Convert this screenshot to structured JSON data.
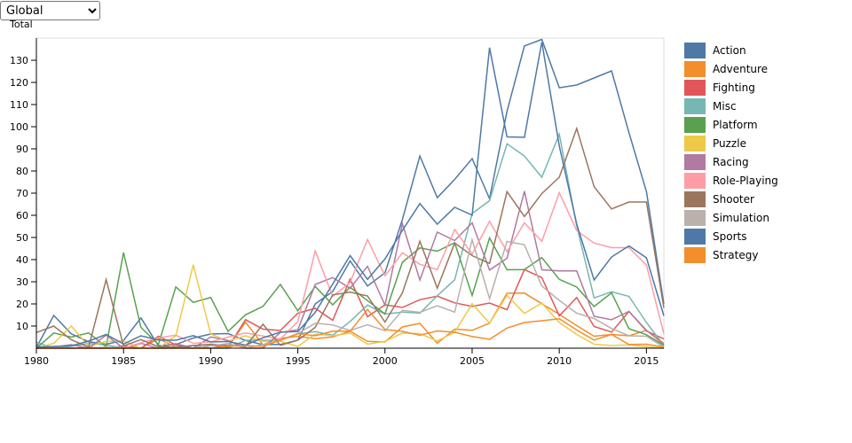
{
  "region_select": {
    "value": "Global",
    "options": [
      "Global"
    ]
  },
  "chart_data": {
    "type": "line",
    "ylabel": "Total",
    "xlim": [
      1980,
      2016
    ],
    "ylim": [
      0,
      140
    ],
    "x_ticks": [
      1980,
      1985,
      1990,
      1995,
      2000,
      2005,
      2010,
      2015
    ],
    "y_ticks": [
      10,
      20,
      30,
      40,
      50,
      60,
      70,
      80,
      90,
      100,
      110,
      120,
      130
    ],
    "legend_position": "right",
    "series": [
      {
        "name": "Action",
        "color": "#4e79a7",
        "x": [
          1980,
          1981,
          1982,
          1983,
          1984,
          1985,
          1986,
          1987,
          1988,
          1989,
          1990,
          1991,
          1992,
          1993,
          1994,
          1995,
          1996,
          1997,
          1998,
          1999,
          2000,
          2001,
          2002,
          2003,
          2004,
          2005,
          2006,
          2007,
          2008,
          2009,
          2010,
          2011,
          2012,
          2013,
          2014,
          2015,
          2016
        ],
        "values": [
          0.3,
          14.8,
          6.5,
          2.9,
          1.8,
          3.5,
          13.7,
          1.1,
          1.7,
          4.6,
          6.4,
          6.6,
          3.5,
          1.6,
          1.7,
          3.6,
          20,
          25.6,
          39.4,
          28.1,
          34.1,
          58.1,
          86.8,
          67.9,
          76.2,
          85.6,
          67.5,
          107,
          136.5,
          139.4,
          117.6,
          118.8,
          122,
          125.2,
          97.3,
          70.7,
          19.9
        ]
      },
      {
        "name": "Adventure",
        "color": "#f28e2b",
        "x": [
          1980,
          1981,
          1982,
          1983,
          1984,
          1985,
          1986,
          1987,
          1988,
          1989,
          1990,
          1991,
          1992,
          1993,
          1994,
          1995,
          1996,
          1997,
          1998,
          1999,
          2000,
          2001,
          2002,
          2003,
          2004,
          2005,
          2006,
          2007,
          2008,
          2009,
          2010,
          2011,
          2012,
          2013,
          2014,
          2015,
          2016
        ],
        "values": [
          0,
          0,
          0,
          0.4,
          0,
          0,
          0,
          4.2,
          0.6,
          0,
          0,
          0.9,
          11.7,
          1.6,
          4.4,
          5.4,
          4.3,
          5.1,
          7.7,
          3.1,
          2.8,
          9.6,
          11.2,
          2.3,
          8.6,
          8.1,
          11.3,
          24.8,
          24.9,
          20.1,
          15.3,
          10.2,
          5.4,
          6.2,
          5.6,
          8.1,
          1.7
        ]
      },
      {
        "name": "Fighting",
        "color": "#e15759",
        "x": [
          1980,
          1981,
          1982,
          1983,
          1984,
          1985,
          1986,
          1987,
          1988,
          1989,
          1990,
          1991,
          1992,
          1993,
          1994,
          1995,
          1996,
          1997,
          1998,
          1999,
          2000,
          2001,
          2002,
          2003,
          2004,
          2005,
          2006,
          2007,
          2008,
          2009,
          2010,
          2011,
          2012,
          2013,
          2014,
          2015,
          2016
        ],
        "values": [
          0.8,
          0,
          0,
          0,
          0,
          1,
          0,
          5.4,
          1.5,
          0,
          1.3,
          0.4,
          12.9,
          8.6,
          8,
          15.8,
          18,
          12.6,
          31.2,
          14.2,
          19.6,
          18.4,
          21.9,
          23.5,
          20.5,
          18.9,
          20.4,
          17.4,
          35.5,
          31.9,
          14.6,
          22.9,
          9.8,
          7.3,
          16.6,
          7.8,
          4.2
        ]
      },
      {
        "name": "Misc",
        "color": "#76b7b2",
        "x": [
          1980,
          1981,
          1982,
          1983,
          1984,
          1985,
          1986,
          1987,
          1988,
          1989,
          1990,
          1991,
          1992,
          1993,
          1994,
          1995,
          1996,
          1997,
          1998,
          1999,
          2000,
          2001,
          2002,
          2003,
          2004,
          2005,
          2006,
          2007,
          2008,
          2009,
          2010,
          2011,
          2012,
          2013,
          2014,
          2015,
          2016
        ],
        "values": [
          2.7,
          0,
          0.9,
          2.1,
          1.5,
          0,
          0,
          0,
          0,
          1.3,
          0,
          0,
          3.6,
          3.6,
          3.6,
          6.5,
          7.5,
          5.9,
          12.1,
          19.5,
          15.4,
          16.3,
          15.8,
          23.7,
          30.9,
          60.8,
          66.6,
          92.3,
          86.7,
          77.2,
          96.6,
          55.2,
          22.7,
          25.5,
          23.4,
          11.6,
          1.2
        ]
      },
      {
        "name": "Platform",
        "color": "#59a14f",
        "x": [
          1980,
          1981,
          1982,
          1983,
          1984,
          1985,
          1986,
          1987,
          1988,
          1989,
          1990,
          1991,
          1992,
          1993,
          1994,
          1995,
          1996,
          1997,
          1998,
          1999,
          2000,
          2001,
          2002,
          2003,
          2004,
          2005,
          2006,
          2007,
          2008,
          2009,
          2010,
          2011,
          2012,
          2013,
          2014,
          2015,
          2016
        ],
        "values": [
          0,
          6.9,
          5,
          6.9,
          0.7,
          43.2,
          9.4,
          1.7,
          27.7,
          20.7,
          22.9,
          7.6,
          15.1,
          18.9,
          28.8,
          16.9,
          27.9,
          19.6,
          27.5,
          21.5,
          15.5,
          38.8,
          45.3,
          43.8,
          47.6,
          23.8,
          49.8,
          35.4,
          35.5,
          40.9,
          31.1,
          27.6,
          18.8,
          25,
          8.8,
          6.1,
          1.3
        ]
      },
      {
        "name": "Puzzle",
        "color": "#edc948",
        "x": [
          1980,
          1981,
          1982,
          1983,
          1984,
          1985,
          1986,
          1987,
          1988,
          1989,
          1990,
          1991,
          1992,
          1993,
          1994,
          1995,
          1996,
          1997,
          1998,
          1999,
          2000,
          2001,
          2002,
          2003,
          2004,
          2005,
          2006,
          2007,
          2008,
          2009,
          2010,
          2011,
          2012,
          2013,
          2014,
          2015,
          2016
        ],
        "values": [
          0,
          2.2,
          10,
          0.8,
          3.1,
          3.2,
          0,
          0,
          5.6,
          37.7,
          6.4,
          3.2,
          5.6,
          3.1,
          3.2,
          0.8,
          6.4,
          5.6,
          6.8,
          1.8,
          3.1,
          6.8,
          6.6,
          3.3,
          7.2,
          20.1,
          11.3,
          23.9,
          15.7,
          20.4,
          11.6,
          6.2,
          1.8,
          1.2,
          1.5,
          0.7,
          0
        ]
      },
      {
        "name": "Racing",
        "color": "#b07aa1",
        "x": [
          1980,
          1981,
          1982,
          1983,
          1984,
          1985,
          1986,
          1987,
          1988,
          1989,
          1990,
          1991,
          1992,
          1993,
          1994,
          1995,
          1996,
          1997,
          1998,
          1999,
          2000,
          2001,
          2002,
          2003,
          2004,
          2005,
          2006,
          2007,
          2008,
          2009,
          2010,
          2011,
          2012,
          2013,
          2014,
          2015,
          2016
        ],
        "values": [
          0,
          0.5,
          1.6,
          0,
          5.9,
          0,
          2.2,
          0,
          2.1,
          0,
          5.1,
          3.5,
          0,
          0,
          7.1,
          8.3,
          28.8,
          31.9,
          27.1,
          37,
          19.4,
          56.2,
          30.8,
          52.4,
          48.6,
          56.6,
          35.3,
          40.6,
          70.9,
          35.4,
          34.9,
          34.9,
          14.4,
          12.9,
          16.6,
          8.1,
          2.1
        ]
      },
      {
        "name": "Role-Playing",
        "color": "#ff9da7",
        "x": [
          1980,
          1981,
          1982,
          1983,
          1984,
          1985,
          1986,
          1987,
          1988,
          1989,
          1990,
          1991,
          1992,
          1993,
          1994,
          1995,
          1996,
          1997,
          1998,
          1999,
          2000,
          2001,
          2002,
          2003,
          2004,
          2005,
          2006,
          2007,
          2008,
          2009,
          2010,
          2011,
          2012,
          2013,
          2014,
          2015,
          2016
        ],
        "values": [
          0,
          0,
          0,
          0,
          0,
          0,
          2.5,
          4.7,
          5.9,
          2.2,
          2.9,
          5,
          6.9,
          5.5,
          4.1,
          12,
          43.9,
          23.4,
          29.7,
          49.1,
          32.7,
          43.1,
          37.9,
          35.5,
          53.6,
          42.5,
          57.3,
          43.6,
          56.6,
          48.3,
          70.2,
          53.1,
          47.5,
          45.4,
          45.4,
          37.5,
          6.5
        ]
      },
      {
        "name": "Shooter",
        "color": "#9c755f",
        "x": [
          1980,
          1981,
          1982,
          1983,
          1984,
          1985,
          1986,
          1987,
          1988,
          1989,
          1990,
          1991,
          1992,
          1993,
          1994,
          1995,
          1996,
          1997,
          1998,
          1999,
          2000,
          2001,
          2002,
          2003,
          2004,
          2005,
          2006,
          2007,
          2008,
          2009,
          2010,
          2011,
          2012,
          2013,
          2014,
          2015,
          2016
        ],
        "values": [
          7.1,
          10,
          3.8,
          0.5,
          31,
          1,
          3.9,
          0.7,
          0.5,
          1.2,
          1.8,
          1.2,
          0.8,
          10.8,
          1.3,
          3.6,
          9.4,
          24.1,
          25.3,
          23.6,
          11.8,
          25,
          48.3,
          27.1,
          47.5,
          41.8,
          38.3,
          70.7,
          59.5,
          69.8,
          77.2,
          99.2,
          72.9,
          62.9,
          66,
          66,
          18.2
        ]
      },
      {
        "name": "Simulation",
        "color": "#bab0ac",
        "x": [
          1980,
          1981,
          1982,
          1983,
          1984,
          1985,
          1986,
          1987,
          1988,
          1989,
          1990,
          1991,
          1992,
          1993,
          1994,
          1995,
          1996,
          1997,
          1998,
          1999,
          2000,
          2001,
          2002,
          2003,
          2004,
          2005,
          2006,
          2007,
          2008,
          2009,
          2010,
          2011,
          2012,
          2013,
          2014,
          2015,
          2016
        ],
        "values": [
          0,
          0.5,
          0,
          0,
          0.5,
          0.1,
          0,
          0,
          0.1,
          0,
          1.1,
          2.1,
          0.1,
          1.7,
          3.5,
          6.6,
          11.3,
          10.5,
          8,
          10.6,
          7.9,
          17.1,
          16.2,
          19.2,
          16.3,
          49,
          22.4,
          48.2,
          46.7,
          28.1,
          21.6,
          15.8,
          13.4,
          8.9,
          5.6,
          5.4,
          0.4
        ]
      },
      {
        "name": "Sports",
        "color": "#4e79a7",
        "x": [
          1980,
          1981,
          1982,
          1983,
          1984,
          1985,
          1986,
          1987,
          1988,
          1989,
          1990,
          1991,
          1992,
          1993,
          1994,
          1995,
          1996,
          1997,
          1998,
          1999,
          2000,
          2001,
          2002,
          2003,
          2004,
          2005,
          2006,
          2007,
          2008,
          2009,
          2010,
          2011,
          2012,
          2013,
          2014,
          2015,
          2016
        ],
        "values": [
          0.5,
          0.8,
          1.1,
          3.2,
          6.2,
          1.9,
          5.6,
          3.7,
          3.6,
          5.7,
          2.8,
          3,
          1.4,
          4.7,
          7.3,
          7.5,
          16.2,
          29,
          41.8,
          31.1,
          40.3,
          53.2,
          65.3,
          56,
          63.6,
          60.1,
          135.7,
          95.4,
          95.2,
          138.2,
          91.3,
          56.1,
          30.8,
          41.2,
          46.2,
          40.8,
          14.6
        ]
      },
      {
        "name": "Strategy",
        "color": "#f28e2b",
        "x": [
          1980,
          1981,
          1982,
          1983,
          1984,
          1985,
          1986,
          1987,
          1988,
          1989,
          1990,
          1991,
          1992,
          1993,
          1994,
          1995,
          1996,
          1997,
          1998,
          1999,
          2000,
          2001,
          2002,
          2003,
          2004,
          2005,
          2006,
          2007,
          2008,
          2009,
          2010,
          2011,
          2012,
          2013,
          2014,
          2015,
          2016
        ],
        "values": [
          0,
          0,
          0,
          0,
          0,
          0,
          0,
          0,
          0,
          0,
          0,
          0.9,
          1.2,
          0.8,
          3.6,
          6.6,
          5.6,
          7.7,
          7.7,
          17.5,
          8.4,
          7.6,
          5.9,
          7.8,
          7.2,
          5.3,
          4,
          9.1,
          11.6,
          12.4,
          13.3,
          8.2,
          3.7,
          6.2,
          1.7,
          1.8,
          0.5
        ]
      }
    ]
  }
}
